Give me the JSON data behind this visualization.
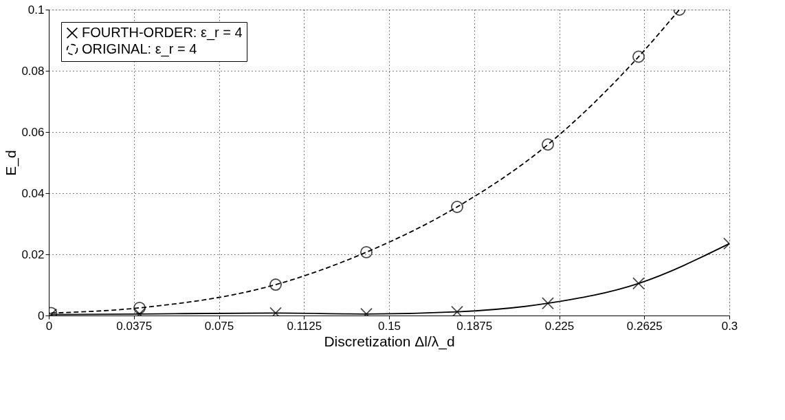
{
  "chart_data": {
    "type": "line",
    "xlabel": "Discretization  Δl/λ_d",
    "ylabel": "E_d",
    "xlim": [
      0,
      0.3
    ],
    "xticks": [
      0,
      0.0375,
      0.075,
      0.1125,
      0.15,
      0.1875,
      0.225,
      0.2625,
      0.3
    ],
    "ylim": [
      0,
      0.1
    ],
    "yticks": [
      0,
      0.02,
      0.04,
      0.06,
      0.08,
      0.1
    ],
    "grid": true,
    "legend": "top left",
    "series": [
      {
        "name": "FOURTH-ORDER: ε_r = 4",
        "color": "#000000",
        "marker": "cross",
        "line_style": "solid",
        "x": [
          0.001,
          0.04,
          0.1,
          0.14,
          0.18,
          0.22,
          0.26,
          0.3
        ],
        "values": [
          0.0003,
          0.0005,
          0.0008,
          0.0005,
          0.0012,
          0.004,
          0.0105,
          0.0235
        ]
      },
      {
        "name": "ORIGINAL: ε_r = 4",
        "color": "#000000",
        "marker": "circle",
        "line_style": "dashed",
        "x": [
          0.001,
          0.04,
          0.1,
          0.14,
          0.18,
          0.22,
          0.26,
          0.278
        ],
        "values": [
          0.0008,
          0.0025,
          0.0101,
          0.0207,
          0.0355,
          0.0559,
          0.0846,
          0.1
        ]
      }
    ]
  }
}
